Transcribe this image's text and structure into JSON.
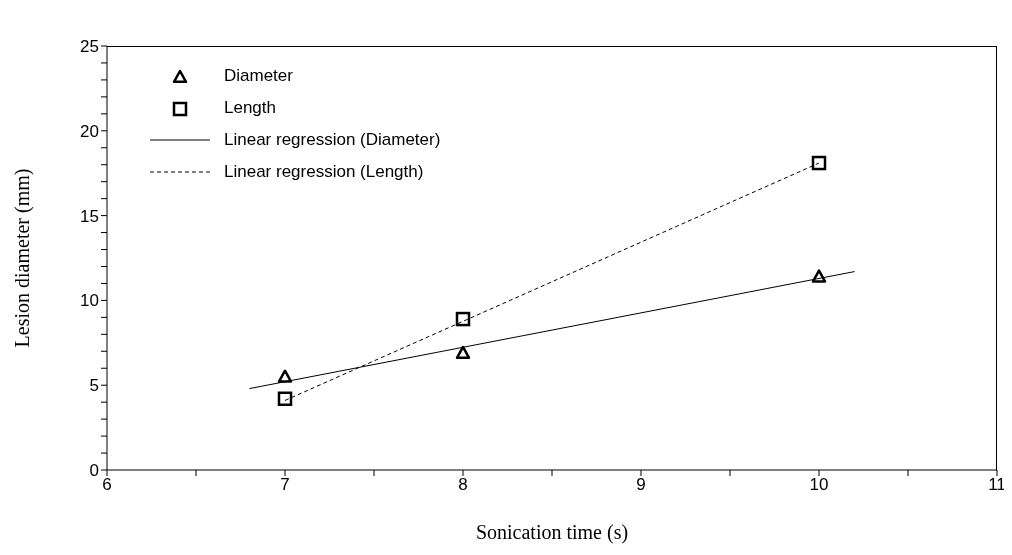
{
  "chart_data": {
    "type": "scatter",
    "xlabel": "Sonication time (s)",
    "ylabel": "Lesion diameter (mm)",
    "xlim": [
      6,
      11
    ],
    "xticks": [
      6,
      {
        "value": 6.5,
        "label": null
      },
      7,
      {
        "value": 7.5,
        "label": null
      },
      8,
      {
        "value": 8.5,
        "label": null
      },
      9,
      {
        "value": 9.5,
        "label": null
      },
      10,
      {
        "value": 10.5,
        "label": null
      },
      11
    ],
    "ylim": [
      0,
      25
    ],
    "yticks": [
      0,
      {
        "value": 1,
        "label": null
      },
      {
        "value": 2,
        "label": null
      },
      {
        "value": 3,
        "label": null
      },
      {
        "value": 4,
        "label": null
      },
      5,
      {
        "value": 6,
        "label": null
      },
      {
        "value": 7,
        "label": null
      },
      {
        "value": 8,
        "label": null
      },
      {
        "value": 9,
        "label": null
      },
      10,
      {
        "value": 11,
        "label": null
      },
      {
        "value": 12,
        "label": null
      },
      {
        "value": 13,
        "label": null
      },
      {
        "value": 14,
        "label": null
      },
      15,
      {
        "value": 16,
        "label": null
      },
      {
        "value": 17,
        "label": null
      },
      {
        "value": 18,
        "label": null
      },
      {
        "value": 19,
        "label": null
      },
      20,
      {
        "value": 21,
        "label": null
      },
      {
        "value": 22,
        "label": null
      },
      {
        "value": 23,
        "label": null
      },
      {
        "value": 24,
        "label": null
      },
      25
    ],
    "legend": "top left",
    "grid": false,
    "series": [
      {
        "name": "Diameter",
        "type": "scatter",
        "marker": "triangle",
        "color": "#000000",
        "x": [
          7,
          8,
          10
        ],
        "values": [
          5.5,
          6.9,
          11.4
        ]
      },
      {
        "name": "Length",
        "type": "scatter",
        "marker": "square",
        "color": "#000000",
        "x": [
          7,
          8,
          10
        ],
        "values": [
          4.2,
          8.9,
          18.1
        ]
      },
      {
        "name": "Linear regression (Diameter)",
        "type": "line",
        "marker": "none",
        "line_style": "solid",
        "color": "#000000",
        "x": [
          6.8,
          10.2
        ],
        "values": [
          4.8,
          11.7
        ]
      },
      {
        "name": "Linear regression (Length)",
        "type": "line",
        "marker": "none",
        "line_style": "dashed",
        "color": "#000000",
        "x": [
          7,
          10
        ],
        "values": [
          4.1,
          18.1
        ]
      }
    ]
  }
}
